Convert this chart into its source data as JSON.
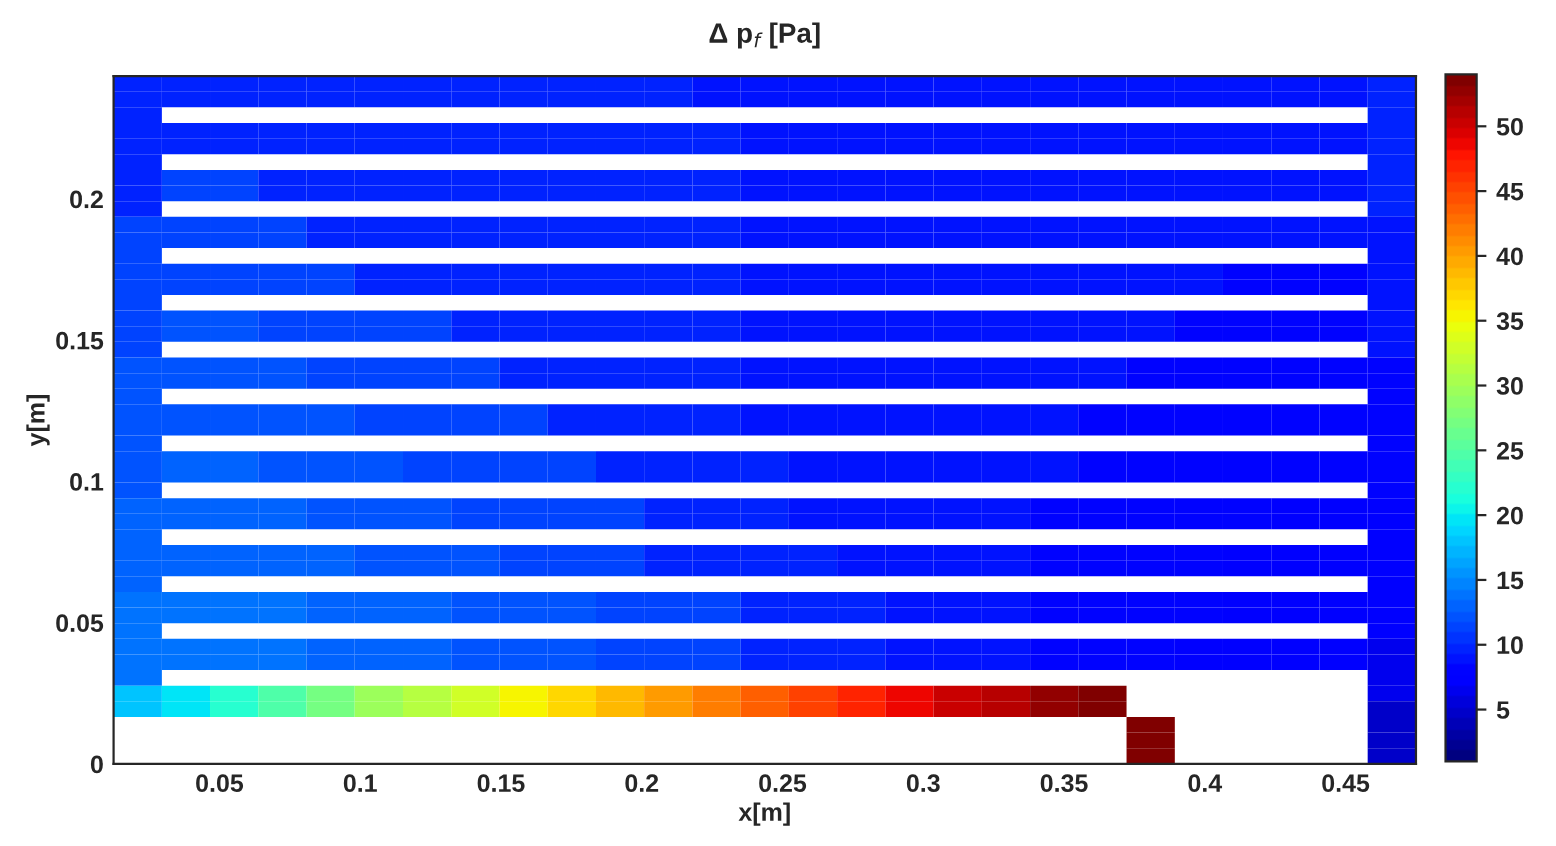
{
  "chart_data": {
    "type": "heatmap",
    "title": "Δ p$_{f}$ [Pa]",
    "xlabel": "x[m]",
    "ylabel": "y[m]",
    "x": [
      0.021,
      0.0381,
      0.0552,
      0.0724,
      0.0895,
      0.1066,
      0.1238,
      0.1409,
      0.158,
      0.1752,
      0.1923,
      0.2094,
      0.2266,
      0.2437,
      0.2608,
      0.278,
      0.2951,
      0.3122,
      0.3294,
      0.3465,
      0.3636,
      0.3808,
      0.3979,
      0.415,
      0.4322,
      0.4493,
      0.4664
    ],
    "y": [
      0.2407,
      0.2352,
      0.2297,
      0.2241,
      0.2186,
      0.2131,
      0.2075,
      0.202,
      0.1965,
      0.1909,
      0.1854,
      0.1799,
      0.1743,
      0.1688,
      0.1633,
      0.1577,
      0.1522,
      0.1467,
      0.1411,
      0.1356,
      0.1301,
      0.1245,
      0.119,
      0.1135,
      0.1079,
      0.1024,
      0.0969,
      0.0913,
      0.0858,
      0.0803,
      0.0747,
      0.0692,
      0.0637,
      0.0581,
      0.0526,
      0.0471,
      0.0415,
      0.036,
      0.0305,
      0.0249,
      0.0194,
      0.0139,
      0.0083,
      0.0028
    ],
    "xlim": [
      0.0124,
      0.475
    ],
    "ylim": [
      0,
      0.2435
    ],
    "xticks": [
      0.05,
      0.1,
      0.15,
      0.2,
      0.25,
      0.3,
      0.35,
      0.4,
      0.45
    ],
    "yticks": [
      0,
      0.05,
      0.1,
      0.15,
      0.2
    ],
    "clim": [
      1,
      54
    ],
    "cticks": [
      5,
      10,
      15,
      20,
      25,
      30,
      35,
      40,
      45,
      50
    ],
    "cells": [
      [
        10,
        10,
        10,
        10,
        10,
        10,
        10,
        10,
        10,
        10,
        10,
        10,
        9,
        9,
        9,
        9,
        9,
        9,
        9,
        9,
        9,
        9,
        9,
        9,
        9,
        9,
        10
      ],
      [
        10,
        10,
        10,
        10,
        10,
        10,
        10,
        10,
        10,
        10,
        10,
        10,
        9,
        9,
        9,
        9,
        9,
        9,
        9,
        9,
        9,
        9,
        9,
        9,
        9,
        9,
        10
      ],
      [
        10,
        null,
        null,
        null,
        null,
        null,
        null,
        null,
        null,
        null,
        null,
        null,
        null,
        null,
        null,
        null,
        null,
        null,
        null,
        null,
        null,
        null,
        null,
        null,
        null,
        null,
        10
      ],
      [
        10,
        10,
        10,
        10,
        10,
        10,
        10,
        10,
        10,
        10,
        10,
        10,
        10,
        9,
        9,
        9,
        9,
        9,
        9,
        9,
        9,
        9,
        9,
        9,
        9,
        9,
        10
      ],
      [
        10,
        10,
        10,
        10,
        10,
        10,
        10,
        10,
        10,
        10,
        10,
        10,
        10,
        9,
        9,
        9,
        9,
        9,
        9,
        9,
        9,
        9,
        9,
        9,
        9,
        9,
        10
      ],
      [
        10,
        null,
        null,
        null,
        null,
        null,
        null,
        null,
        null,
        null,
        null,
        null,
        null,
        null,
        null,
        null,
        null,
        null,
        null,
        null,
        null,
        null,
        null,
        null,
        null,
        null,
        10
      ],
      [
        10,
        11,
        11,
        10,
        10,
        10,
        10,
        10,
        10,
        10,
        10,
        10,
        10,
        9,
        9,
        9,
        9,
        9,
        9,
        9,
        9,
        9,
        9,
        9,
        9,
        9,
        10
      ],
      [
        10,
        11,
        11,
        10,
        10,
        10,
        10,
        10,
        10,
        10,
        10,
        10,
        10,
        9,
        9,
        9,
        9,
        9,
        9,
        9,
        9,
        9,
        9,
        9,
        9,
        9,
        10
      ],
      [
        10,
        null,
        null,
        null,
        null,
        null,
        null,
        null,
        null,
        null,
        null,
        null,
        null,
        null,
        null,
        null,
        null,
        null,
        null,
        null,
        null,
        null,
        null,
        null,
        null,
        null,
        10
      ],
      [
        11,
        11,
        11,
        11,
        10,
        10,
        10,
        10,
        10,
        10,
        10,
        10,
        10,
        9,
        9,
        9,
        9,
        9,
        9,
        9,
        9,
        9,
        9,
        9,
        9,
        9,
        9
      ],
      [
        11,
        11,
        11,
        11,
        10,
        10,
        10,
        10,
        10,
        10,
        10,
        10,
        10,
        9,
        9,
        9,
        9,
        9,
        9,
        9,
        9,
        9,
        9,
        9,
        9,
        9,
        9
      ],
      [
        11,
        null,
        null,
        null,
        null,
        null,
        null,
        null,
        null,
        null,
        null,
        null,
        null,
        null,
        null,
        null,
        null,
        null,
        null,
        null,
        null,
        null,
        null,
        null,
        null,
        null,
        9
      ],
      [
        11,
        11,
        11,
        11,
        11,
        10,
        10,
        10,
        10,
        10,
        10,
        10,
        10,
        9,
        9,
        9,
        9,
        9,
        9,
        9,
        9,
        9,
        9,
        8,
        8,
        8,
        9
      ],
      [
        11,
        11,
        11,
        11,
        11,
        10,
        10,
        10,
        10,
        10,
        10,
        10,
        10,
        9,
        9,
        9,
        9,
        9,
        9,
        9,
        9,
        9,
        9,
        8,
        8,
        8,
        9
      ],
      [
        11,
        null,
        null,
        null,
        null,
        null,
        null,
        null,
        null,
        null,
        null,
        null,
        null,
        null,
        null,
        null,
        null,
        null,
        null,
        null,
        null,
        null,
        null,
        null,
        null,
        null,
        9
      ],
      [
        11,
        12,
        12,
        11,
        11,
        11,
        11,
        10,
        10,
        10,
        10,
        10,
        10,
        9,
        9,
        9,
        9,
        9,
        9,
        9,
        9,
        9,
        8,
        8,
        8,
        8,
        9
      ],
      [
        11,
        12,
        12,
        11,
        11,
        11,
        11,
        10,
        10,
        10,
        10,
        10,
        10,
        9,
        9,
        9,
        9,
        9,
        9,
        9,
        9,
        9,
        8,
        8,
        8,
        8,
        9
      ],
      [
        11,
        null,
        null,
        null,
        null,
        null,
        null,
        null,
        null,
        null,
        null,
        null,
        null,
        null,
        null,
        null,
        null,
        null,
        null,
        null,
        null,
        null,
        null,
        null,
        null,
        null,
        9
      ],
      [
        12,
        12,
        12,
        12,
        11,
        11,
        11,
        11,
        10,
        10,
        10,
        10,
        10,
        9,
        9,
        9,
        9,
        9,
        9,
        9,
        9,
        8,
        8,
        8,
        8,
        8,
        8
      ],
      [
        12,
        12,
        12,
        12,
        11,
        11,
        11,
        11,
        10,
        10,
        10,
        10,
        10,
        9,
        9,
        9,
        9,
        9,
        9,
        9,
        9,
        8,
        8,
        8,
        8,
        8,
        8
      ],
      [
        12,
        null,
        null,
        null,
        null,
        null,
        null,
        null,
        null,
        null,
        null,
        null,
        null,
        null,
        null,
        null,
        null,
        null,
        null,
        null,
        null,
        null,
        null,
        null,
        null,
        null,
        8
      ],
      [
        12,
        12,
        12,
        12,
        12,
        11,
        11,
        11,
        11,
        10,
        10,
        10,
        10,
        9,
        9,
        9,
        9,
        9,
        9,
        9,
        8,
        8,
        8,
        8,
        8,
        8,
        8
      ],
      [
        12,
        12,
        12,
        12,
        12,
        11,
        11,
        11,
        11,
        10,
        10,
        10,
        10,
        9,
        9,
        9,
        9,
        9,
        9,
        9,
        8,
        8,
        8,
        8,
        8,
        8,
        8
      ],
      [
        12,
        null,
        null,
        null,
        null,
        null,
        null,
        null,
        null,
        null,
        null,
        null,
        null,
        null,
        null,
        null,
        null,
        null,
        null,
        null,
        null,
        null,
        null,
        null,
        null,
        null,
        8
      ],
      [
        12,
        13,
        13,
        12,
        12,
        12,
        11,
        11,
        11,
        11,
        10,
        10,
        10,
        10,
        9,
        9,
        9,
        9,
        9,
        9,
        8,
        8,
        8,
        8,
        8,
        8,
        8
      ],
      [
        12,
        13,
        13,
        12,
        12,
        12,
        11,
        11,
        11,
        11,
        10,
        10,
        10,
        10,
        9,
        9,
        9,
        9,
        9,
        9,
        8,
        8,
        8,
        8,
        8,
        8,
        8
      ],
      [
        12,
        null,
        null,
        null,
        null,
        null,
        null,
        null,
        null,
        null,
        null,
        null,
        null,
        null,
        null,
        null,
        null,
        null,
        null,
        null,
        null,
        null,
        null,
        null,
        null,
        null,
        8
      ],
      [
        13,
        13,
        13,
        13,
        12,
        12,
        12,
        11,
        11,
        11,
        11,
        10,
        10,
        10,
        9,
        9,
        9,
        9,
        9,
        8,
        8,
        8,
        8,
        8,
        7,
        7,
        7
      ],
      [
        13,
        13,
        13,
        13,
        12,
        12,
        12,
        11,
        11,
        11,
        11,
        10,
        10,
        10,
        9,
        9,
        9,
        9,
        9,
        8,
        8,
        8,
        8,
        8,
        7,
        7,
        7
      ],
      [
        13,
        null,
        null,
        null,
        null,
        null,
        null,
        null,
        null,
        null,
        null,
        null,
        null,
        null,
        null,
        null,
        null,
        null,
        null,
        null,
        null,
        null,
        null,
        null,
        null,
        null,
        7
      ],
      [
        13,
        13,
        13,
        13,
        13,
        12,
        12,
        12,
        11,
        11,
        11,
        10,
        10,
        10,
        10,
        9,
        9,
        9,
        9,
        8,
        8,
        8,
        8,
        7,
        7,
        7,
        7
      ],
      [
        13,
        13,
        13,
        13,
        13,
        12,
        12,
        12,
        11,
        11,
        11,
        10,
        10,
        10,
        10,
        9,
        9,
        9,
        9,
        8,
        8,
        8,
        8,
        7,
        7,
        7,
        7
      ],
      [
        13,
        null,
        null,
        null,
        null,
        null,
        null,
        null,
        null,
        null,
        null,
        null,
        null,
        null,
        null,
        null,
        null,
        null,
        null,
        null,
        null,
        null,
        null,
        null,
        null,
        null,
        7
      ],
      [
        14,
        14,
        14,
        14,
        13,
        13,
        13,
        12,
        12,
        12,
        11,
        11,
        11,
        10,
        10,
        10,
        9,
        9,
        9,
        8,
        8,
        8,
        8,
        7,
        7,
        7,
        7
      ],
      [
        14,
        14,
        14,
        14,
        13,
        13,
        13,
        12,
        12,
        12,
        11,
        11,
        11,
        10,
        10,
        10,
        9,
        9,
        9,
        8,
        8,
        8,
        8,
        7,
        7,
        7,
        7
      ],
      [
        14,
        null,
        null,
        null,
        null,
        null,
        null,
        null,
        null,
        null,
        null,
        null,
        null,
        null,
        null,
        null,
        null,
        null,
        null,
        null,
        null,
        null,
        null,
        null,
        null,
        null,
        7
      ],
      [
        14,
        14,
        14,
        14,
        13,
        13,
        13,
        12,
        12,
        12,
        11,
        11,
        11,
        10,
        10,
        10,
        9,
        9,
        9,
        8,
        8,
        8,
        7,
        7,
        7,
        7,
        6
      ],
      [
        14,
        14,
        14,
        14,
        13,
        13,
        13,
        12,
        12,
        12,
        11,
        11,
        11,
        10,
        10,
        10,
        9,
        9,
        9,
        8,
        8,
        8,
        7,
        7,
        7,
        7,
        6
      ],
      [
        14,
        null,
        null,
        null,
        null,
        null,
        null,
        null,
        null,
        null,
        null,
        null,
        null,
        null,
        null,
        null,
        null,
        null,
        null,
        null,
        null,
        null,
        null,
        null,
        null,
        null,
        6
      ],
      [
        18,
        20,
        22.5,
        25,
        27,
        29.5,
        31,
        33,
        35,
        37,
        38.5,
        40,
        42,
        43.5,
        45,
        47,
        48.5,
        50,
        51.5,
        53,
        53.5,
        null,
        null,
        null,
        null,
        null,
        6
      ],
      [
        18,
        20,
        22.5,
        25,
        27,
        29.5,
        31,
        33,
        35,
        37,
        38.5,
        40,
        42,
        43.5,
        45,
        47,
        48.5,
        50,
        51.5,
        53,
        53.5,
        null,
        null,
        null,
        null,
        null,
        5
      ],
      [
        null,
        null,
        null,
        null,
        null,
        null,
        null,
        null,
        null,
        null,
        null,
        null,
        null,
        null,
        null,
        null,
        null,
        null,
        null,
        null,
        null,
        54,
        null,
        null,
        null,
        null,
        5
      ],
      [
        null,
        null,
        null,
        null,
        null,
        null,
        null,
        null,
        null,
        null,
        null,
        null,
        null,
        null,
        null,
        null,
        null,
        null,
        null,
        null,
        null,
        54,
        null,
        null,
        null,
        null,
        5
      ],
      [
        null,
        null,
        null,
        null,
        null,
        null,
        null,
        null,
        null,
        null,
        null,
        null,
        null,
        null,
        null,
        null,
        null,
        null,
        null,
        null,
        null,
        54,
        null,
        null,
        null,
        null,
        5
      ]
    ]
  }
}
